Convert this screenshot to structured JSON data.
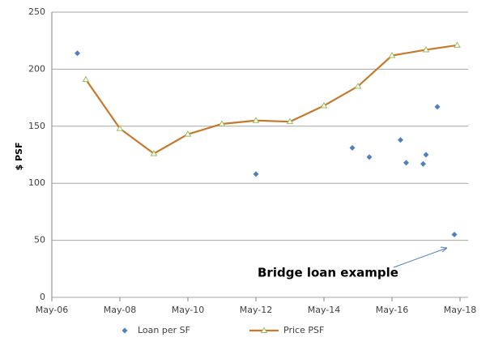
{
  "chart_data": {
    "type": "line",
    "y_label": "$ PSF",
    "annotation": "Bridge loan example",
    "xlim": [
      "2006-05",
      "2018-05"
    ],
    "xticks": [
      {
        "value": "2006-05",
        "label": "May-06"
      },
      {
        "value": "2008-05",
        "label": "May-08"
      },
      {
        "value": "2010-05",
        "label": "May-10"
      },
      {
        "value": "2012-05",
        "label": "May-12"
      },
      {
        "value": "2014-05",
        "label": "May-14"
      },
      {
        "value": "2016-05",
        "label": "May-16"
      },
      {
        "value": "2018-05",
        "label": "May-18"
      }
    ],
    "ylim": [
      0,
      250
    ],
    "yticks": [
      0,
      50,
      100,
      150,
      200,
      250
    ],
    "grid": true,
    "legend": "bottom",
    "series": [
      {
        "name": "Loan per SF",
        "color": "#4f81bd",
        "marker": "diamond",
        "line": false,
        "x": [
          "2007-02",
          "2012-05",
          "2015-03",
          "2015-09",
          "2016-08",
          "2016-10",
          "2017-04",
          "2017-05",
          "2017-09",
          "2018-03"
        ],
        "values": [
          214,
          108,
          131,
          123,
          138,
          118,
          117,
          125,
          167,
          55
        ]
      },
      {
        "name": "Price PSF",
        "color": "#c8782a",
        "marker": "triangle",
        "marker_color": "#9bbb59",
        "line": true,
        "x": [
          "2007-05",
          "2008-05",
          "2009-05",
          "2010-05",
          "2011-05",
          "2012-05",
          "2013-05",
          "2014-05",
          "2015-05",
          "2016-05",
          "2017-05",
          "2018-04"
        ],
        "values": [
          191,
          148,
          126,
          143,
          152,
          155,
          154,
          168,
          185,
          212,
          217,
          221
        ]
      }
    ]
  }
}
